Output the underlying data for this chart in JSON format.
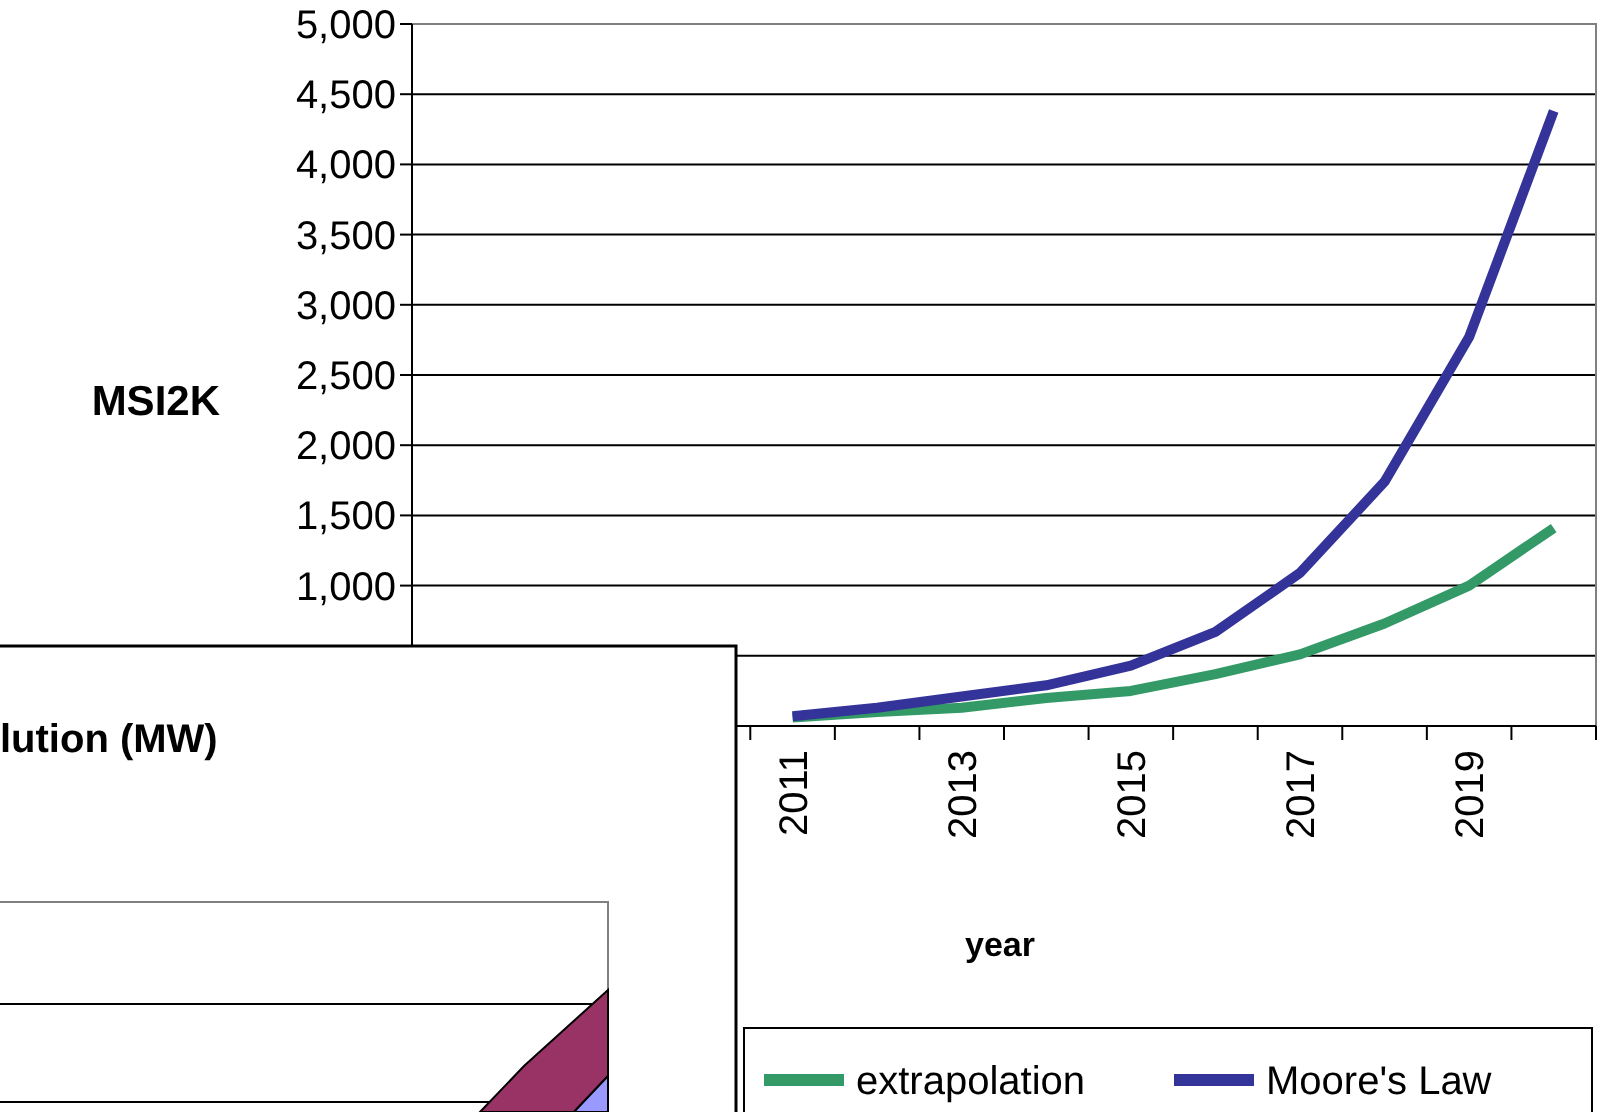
{
  "chart_data": {
    "type": "line",
    "ylabel": "MSI2K",
    "xlabel": "year",
    "categories": [
      null,
      null,
      null,
      null,
      "2011",
      null,
      "2013",
      null,
      "2015",
      null,
      "2017",
      null,
      "2019",
      null
    ],
    "series": [
      {
        "name": "extrapolation",
        "color": "#339966",
        "values": [
          null,
          null,
          null,
          null,
          60,
          100,
          130,
          200,
          250,
          370,
          510,
          730,
          1000,
          1410
        ]
      },
      {
        "name": "Moore's Law",
        "color": "#333399",
        "values": [
          null,
          null,
          null,
          null,
          70,
          130,
          210,
          290,
          430,
          670,
          1090,
          1740,
          2770,
          4380
        ]
      }
    ],
    "ylim": [
      0,
      5000
    ],
    "yticks": [
      {
        "value": 500,
        "label": null
      },
      {
        "value": 1000,
        "label": "1,000"
      },
      {
        "value": 1500,
        "label": "1,500"
      },
      {
        "value": 2000,
        "label": "2,000"
      },
      {
        "value": 2500,
        "label": "2,500"
      },
      {
        "value": 3000,
        "label": "3,000"
      },
      {
        "value": 3500,
        "label": "3,500"
      },
      {
        "value": 4000,
        "label": "4,000"
      },
      {
        "value": 4500,
        "label": "4,500"
      },
      {
        "value": 5000,
        "label": "5,000"
      }
    ],
    "grid": "y",
    "legend": "bottom",
    "annotations": [
      "lution (MW)"
    ]
  }
}
